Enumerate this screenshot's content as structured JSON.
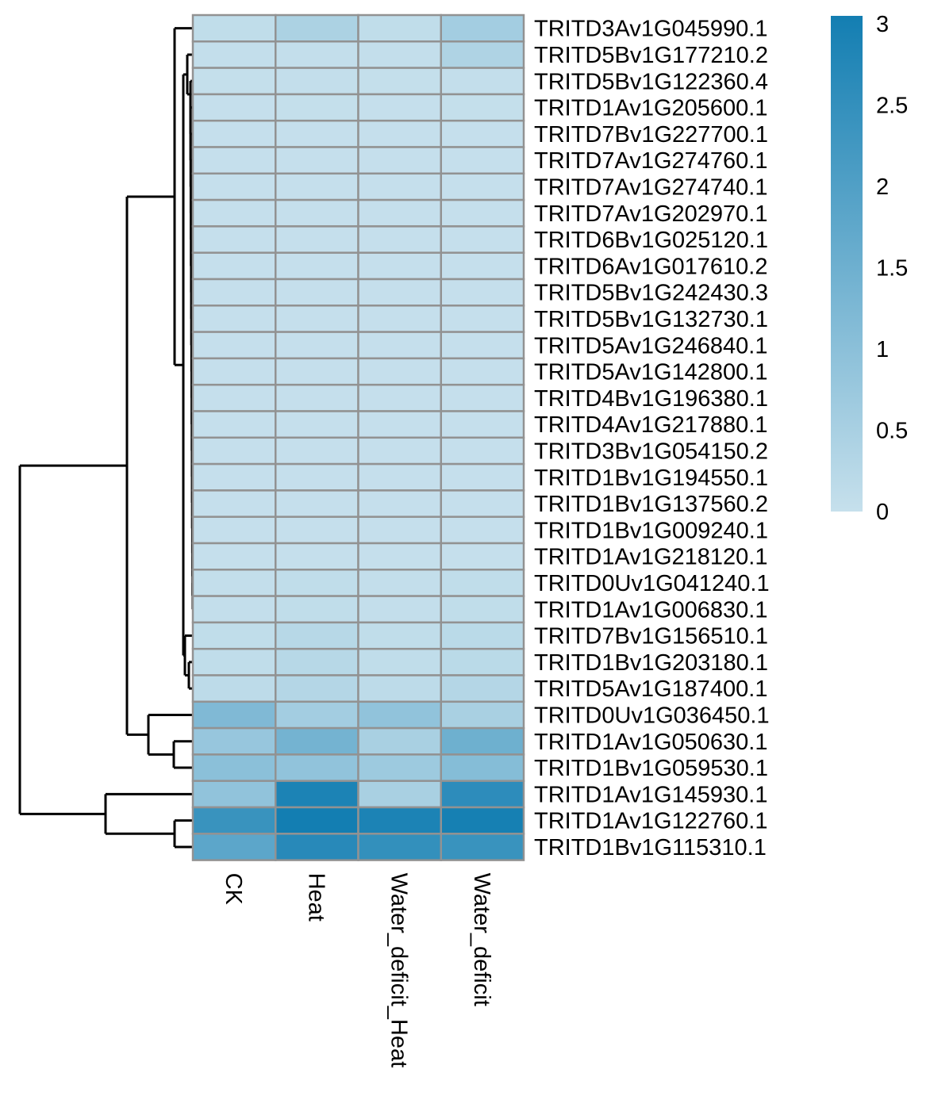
{
  "chart_data": {
    "type": "heatmap",
    "title": "",
    "xlabel": "",
    "ylabel": "",
    "columns": [
      "CK",
      "Heat",
      "Water_deficit_Heat",
      "Water_deficit"
    ],
    "rows": [
      "TRITD3Av1G045990.1",
      "TRITD5Bv1G177210.2",
      "TRITD5Bv1G122360.4",
      "TRITD1Av1G205600.1",
      "TRITD7Bv1G227700.1",
      "TRITD7Av1G274760.1",
      "TRITD7Av1G274740.1",
      "TRITD7Av1G202970.1",
      "TRITD6Bv1G025120.1",
      "TRITD6Av1G017610.2",
      "TRITD5Bv1G242430.3",
      "TRITD5Bv1G132730.1",
      "TRITD5Av1G246840.1",
      "TRITD5Av1G142800.1",
      "TRITD4Bv1G196380.1",
      "TRITD4Av1G217880.1",
      "TRITD3Bv1G054150.2",
      "TRITD1Bv1G194550.1",
      "TRITD1Bv1G137560.2",
      "TRITD1Bv1G009240.1",
      "TRITD1Av1G218120.1",
      "TRITD0Uv1G041240.1",
      "TRITD1Av1G006830.1",
      "TRITD7Bv1G156510.1",
      "TRITD1Bv1G203180.1",
      "TRITD5Av1G187400.1",
      "TRITD0Uv1G036450.1",
      "TRITD1Av1G050630.1",
      "TRITD1Bv1G059530.1",
      "TRITD1Av1G145930.1",
      "TRITD1Av1G122760.1",
      "TRITD1Bv1G115310.1"
    ],
    "values": [
      [
        0.1,
        0.45,
        0.1,
        0.6
      ],
      [
        0.05,
        0.05,
        0.05,
        0.4
      ],
      [
        0.03,
        0.05,
        0.03,
        0.05
      ],
      [
        0.02,
        0.03,
        0.02,
        0.03
      ],
      [
        0.02,
        0.02,
        0.02,
        0.02
      ],
      [
        0.02,
        0.02,
        0.02,
        0.02
      ],
      [
        0.02,
        0.02,
        0.02,
        0.02
      ],
      [
        0.02,
        0.02,
        0.02,
        0.02
      ],
      [
        0.02,
        0.02,
        0.02,
        0.02
      ],
      [
        0.02,
        0.02,
        0.02,
        0.02
      ],
      [
        0.02,
        0.02,
        0.02,
        0.02
      ],
      [
        0.02,
        0.02,
        0.02,
        0.02
      ],
      [
        0.02,
        0.02,
        0.02,
        0.02
      ],
      [
        0.02,
        0.02,
        0.02,
        0.02
      ],
      [
        0.02,
        0.02,
        0.02,
        0.02
      ],
      [
        0.02,
        0.02,
        0.02,
        0.02
      ],
      [
        0.02,
        0.02,
        0.02,
        0.02
      ],
      [
        0.02,
        0.02,
        0.02,
        0.02
      ],
      [
        0.02,
        0.02,
        0.02,
        0.02
      ],
      [
        0.02,
        0.02,
        0.02,
        0.02
      ],
      [
        0.02,
        0.02,
        0.02,
        0.02
      ],
      [
        0.05,
        0.1,
        0.05,
        0.1
      ],
      [
        0.05,
        0.1,
        0.05,
        0.1
      ],
      [
        0.1,
        0.25,
        0.1,
        0.2
      ],
      [
        0.1,
        0.25,
        0.1,
        0.2
      ],
      [
        0.15,
        0.3,
        0.15,
        0.3
      ],
      [
        1.2,
        0.6,
        0.9,
        0.5
      ],
      [
        0.8,
        1.4,
        0.5,
        1.5
      ],
      [
        1.0,
        0.9,
        0.7,
        1.1
      ],
      [
        0.9,
        2.9,
        0.5,
        2.6
      ],
      [
        2.4,
        3.1,
        2.9,
        3.0
      ],
      [
        1.8,
        2.7,
        2.5,
        2.4
      ]
    ],
    "colorbar": {
      "ticks": [
        "3",
        "2.5",
        "2",
        "1.5",
        "1",
        "0.5",
        "0"
      ],
      "range": [
        0,
        3.05
      ],
      "low_color": "#c6e0ec",
      "high_color": "#137eb2"
    },
    "cell_border_color": "#929292",
    "row_dendrogram": true
  }
}
